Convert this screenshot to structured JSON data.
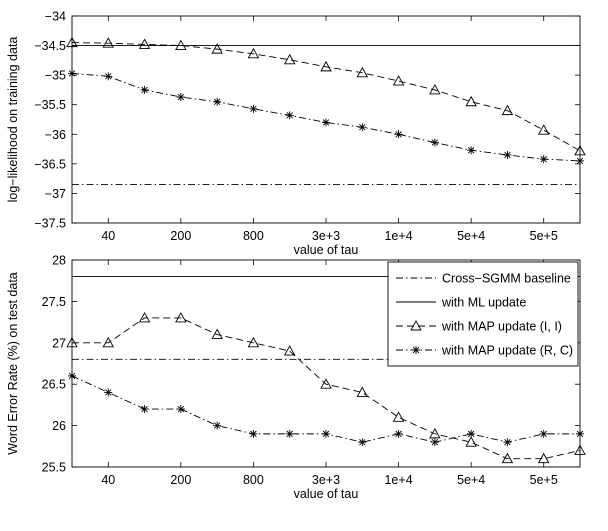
{
  "chart_data": [
    {
      "type": "line",
      "xlabel": "value of tau",
      "ylabel": "log−likelihood on training data",
      "x_tick_labels": [
        "40",
        "200",
        "800",
        "3e+3",
        "1e+4",
        "5e+4",
        "5e+5"
      ],
      "x_tick_index": [
        1,
        3,
        5,
        7,
        9,
        11,
        13
      ],
      "x_index_range": [
        0,
        14
      ],
      "y_tick_labels": [
        "−34",
        "−34.5",
        "−35",
        "−35.5",
        "−36",
        "−36.5",
        "−37",
        "−37.5"
      ],
      "ylim": [
        -37.5,
        -34
      ],
      "series": [
        {
          "style": "dash-dot",
          "constant": -36.85,
          "values": []
        },
        {
          "style": "solid",
          "constant": -34.5,
          "values": []
        },
        {
          "style": "dashed-triangle",
          "values": [
            -34.45,
            -34.46,
            -34.48,
            -34.5,
            -34.56,
            -34.64,
            -34.74,
            -34.86,
            -34.96,
            -35.1,
            -35.25,
            -35.45,
            -35.6,
            -35.93,
            -36.28
          ]
        },
        {
          "style": "dash-dot-star",
          "values": [
            -34.97,
            -35.02,
            -35.25,
            -35.37,
            -35.45,
            -35.57,
            -35.68,
            -35.8,
            -35.88,
            -36.0,
            -36.14,
            -36.27,
            -36.35,
            -36.42,
            -36.45
          ]
        }
      ],
      "grid": false
    },
    {
      "type": "line",
      "xlabel": "value of tau",
      "ylabel": "Word Error Rate (%) on test data",
      "x_tick_labels": [
        "40",
        "200",
        "800",
        "3e+3",
        "1e+4",
        "5e+4",
        "5e+5"
      ],
      "x_tick_index": [
        1,
        3,
        5,
        7,
        9,
        11,
        13
      ],
      "x_index_range": [
        0,
        14
      ],
      "y_tick_labels": [
        "25.5",
        "26",
        "26.5",
        "27",
        "27.5",
        "28"
      ],
      "ylim": [
        25.5,
        28
      ],
      "legend_position": "top-right",
      "series": [
        {
          "name": "Cross−SGMM baseline",
          "style": "dash-dot",
          "constant": 26.8,
          "values": []
        },
        {
          "name": "with ML update",
          "style": "solid",
          "constant": 27.8,
          "values": []
        },
        {
          "name": "with MAP update (I, I)",
          "style": "dashed-triangle",
          "values": [
            27.0,
            27.0,
            27.3,
            27.3,
            27.1,
            27.0,
            26.9,
            26.5,
            26.4,
            26.1,
            25.9,
            25.8,
            25.6,
            25.6,
            25.7
          ]
        },
        {
          "name": "with MAP update (R, C)",
          "style": "dash-dot-star",
          "values": [
            26.6,
            26.4,
            26.2,
            26.2,
            26.0,
            25.9,
            25.9,
            25.9,
            25.8,
            25.9,
            25.8,
            25.9,
            25.8,
            25.9,
            25.9
          ]
        }
      ],
      "grid": false
    }
  ]
}
